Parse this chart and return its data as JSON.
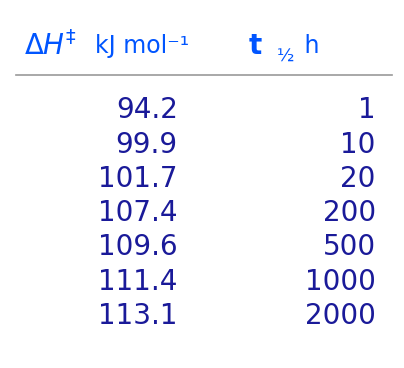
{
  "col1_values": [
    "94.2",
    "99.9",
    "101.7",
    "107.4",
    "109.6",
    "111.4",
    "113.1"
  ],
  "col2_values": [
    "1",
    "10",
    "20",
    "200",
    "500",
    "1000",
    "2000"
  ],
  "header_color": "#0055ff",
  "data_color": "#1a1a99",
  "line_color": "#999999",
  "bg_color": "#ffffff",
  "header_fontsize": 18,
  "data_fontsize": 20,
  "fig_width": 4.04,
  "fig_height": 3.68,
  "dpi": 100
}
